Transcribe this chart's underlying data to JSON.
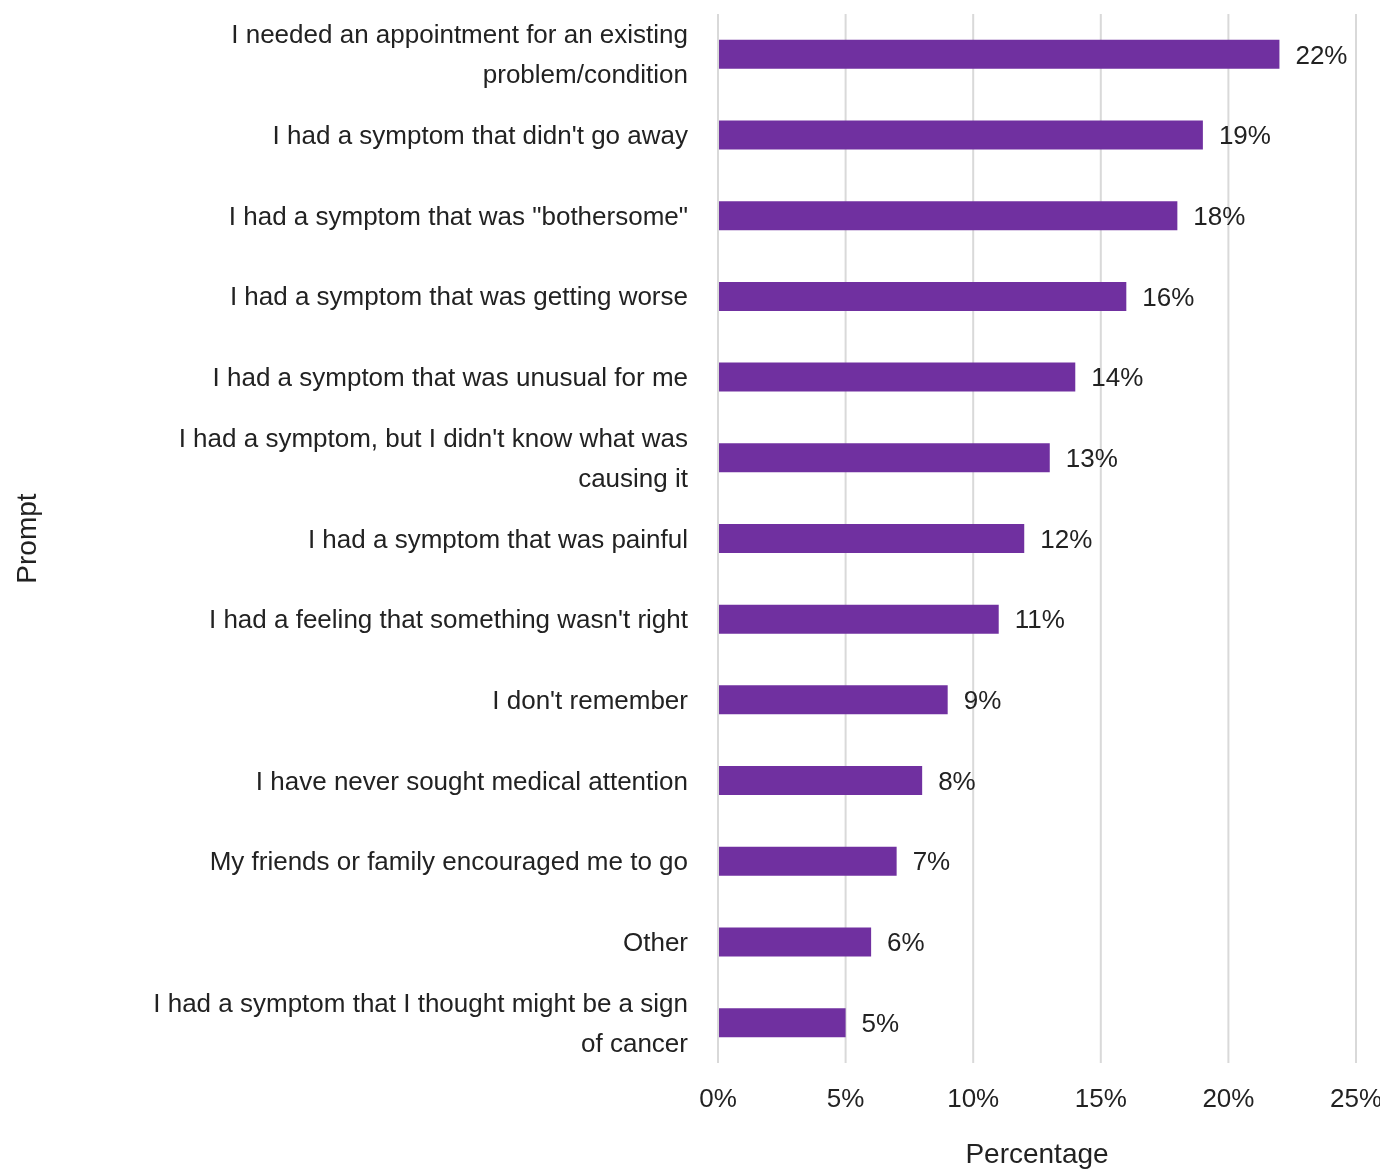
{
  "chart_data": {
    "type": "bar",
    "orientation": "horizontal",
    "xlabel": "Percentage",
    "ylabel": "Prompt",
    "categories": [
      "I needed an appointment for an existing problem/condition",
      "I had a symptom that didn't go away",
      "I had a symptom that was \"bothersome\"",
      "I had a symptom that was getting worse",
      "I had a symptom that was unusual for me",
      "I had a symptom, but I didn't know what was causing it",
      "I had a symptom that was painful",
      "I had a feeling that something wasn't right",
      "I don't remember",
      "I have never sought medical attention",
      "My friends or family encouraged me to go",
      "Other",
      "I had a symptom that I thought might be a sign of cancer"
    ],
    "values": [
      22,
      19,
      18,
      16,
      14,
      13,
      12,
      11,
      9,
      8,
      7,
      6,
      5
    ],
    "value_labels": [
      "22%",
      "19%",
      "18%",
      "16%",
      "14%",
      "13%",
      "12%",
      "11%",
      "9%",
      "8%",
      "7%",
      "6%",
      "5%"
    ],
    "color": "#7030a0",
    "xlim": [
      0,
      25
    ],
    "xticks": [
      {
        "value": 0,
        "label": "0%"
      },
      {
        "value": 5,
        "label": "5%"
      },
      {
        "value": 10,
        "label": "10%"
      },
      {
        "value": 15,
        "label": "15%"
      },
      {
        "value": 20,
        "label": "20%"
      },
      {
        "value": 25,
        "label": "25%"
      }
    ],
    "grid": "x"
  }
}
